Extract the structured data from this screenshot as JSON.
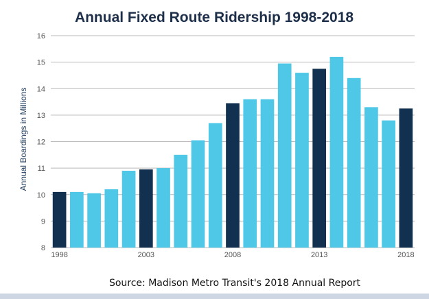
{
  "chart_data": {
    "type": "bar",
    "title": "Annual Fixed Route Ridership 1998-2018",
    "ylabel": "Annual Boardings in Millions",
    "xlabel": "",
    "source": "Source: Madison Metro Transit's 2018 Annual Report",
    "categories": [
      "1998",
      "1999",
      "2000",
      "2001",
      "2002",
      "2003",
      "2004",
      "2005",
      "2006",
      "2007",
      "2008",
      "2009",
      "2010",
      "2011",
      "2012",
      "2013",
      "2014",
      "2015",
      "2016",
      "2017",
      "2018"
    ],
    "values": [
      10.1,
      10.1,
      10.05,
      10.2,
      10.9,
      10.95,
      11.0,
      11.5,
      12.05,
      12.7,
      13.45,
      13.6,
      13.6,
      14.95,
      14.6,
      14.75,
      15.2,
      14.4,
      13.3,
      12.8,
      13.25
    ],
    "highlighted_years": [
      "1998",
      "2003",
      "2008",
      "2013",
      "2018"
    ],
    "x_tick_labels": [
      "1998",
      "2003",
      "2008",
      "2013",
      "2018"
    ],
    "y_ticks": [
      8,
      9,
      10,
      11,
      12,
      13,
      14,
      15,
      16
    ],
    "ylim": [
      8,
      16
    ],
    "grid": true,
    "colors": {
      "bar": "#4fc8e8",
      "highlight": "#12304f",
      "title": "#1e2f4a"
    }
  }
}
